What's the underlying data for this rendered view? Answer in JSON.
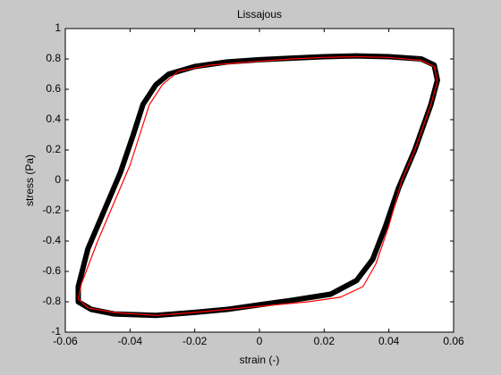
{
  "chart_data": {
    "type": "line",
    "title": "Lissajous",
    "xlabel": "strain (-)",
    "ylabel": "stress (Pa)",
    "xlim": [
      -0.06,
      0.06
    ],
    "xticks": [
      -0.06,
      -0.04,
      -0.02,
      0,
      0.02,
      0.04,
      0.06
    ],
    "ylim": [
      -1,
      1
    ],
    "yticks": [
      -1,
      -0.8,
      -0.6,
      -0.4,
      -0.2,
      0,
      0.2,
      0.4,
      0.6,
      0.8,
      1
    ],
    "grid": false,
    "series": [
      {
        "color": "#000000",
        "x": [
          -0.028,
          -0.02,
          -0.01,
          0,
          0.01,
          0.02,
          0.03,
          0.04,
          0.05,
          0.054,
          0.055,
          0.053,
          0.048,
          0.043,
          0.039,
          0.035,
          0.03,
          0.022,
          0.01,
          0,
          -0.01,
          -0.02,
          -0.032,
          -0.045,
          -0.052,
          -0.056,
          -0.056,
          -0.053,
          -0.048,
          -0.043,
          -0.039,
          -0.036,
          -0.032
        ],
        "values": [
          0.7,
          0.75,
          0.78,
          0.795,
          0.805,
          0.815,
          0.82,
          0.815,
          0.8,
          0.76,
          0.66,
          0.5,
          0.2,
          -0.05,
          -0.3,
          -0.52,
          -0.66,
          -0.75,
          -0.79,
          -0.82,
          -0.85,
          -0.87,
          -0.89,
          -0.88,
          -0.85,
          -0.8,
          -0.7,
          -0.45,
          -0.2,
          0.05,
          0.3,
          0.5,
          0.63
        ]
      },
      {
        "color": "#ff0000",
        "x": [
          -0.025,
          -0.015,
          0,
          0.01,
          0.02,
          0.03,
          0.04,
          0.05,
          0.054,
          0.055,
          0.053,
          0.048,
          0.044,
          0.04,
          0.036,
          0.032,
          0.025,
          0.015,
          0,
          -0.01,
          -0.02,
          -0.032,
          -0.045,
          -0.053,
          -0.056,
          -0.055,
          -0.05,
          -0.045,
          -0.04,
          -0.037,
          -0.034,
          -0.03
        ],
        "values": [
          0.72,
          0.76,
          0.785,
          0.8,
          0.81,
          0.815,
          0.81,
          0.79,
          0.75,
          0.65,
          0.5,
          0.2,
          0,
          -0.3,
          -0.55,
          -0.7,
          -0.77,
          -0.8,
          -0.83,
          -0.85,
          -0.87,
          -0.89,
          -0.87,
          -0.84,
          -0.78,
          -0.68,
          -0.4,
          -0.15,
          0.1,
          0.3,
          0.5,
          0.63
        ]
      }
    ]
  }
}
